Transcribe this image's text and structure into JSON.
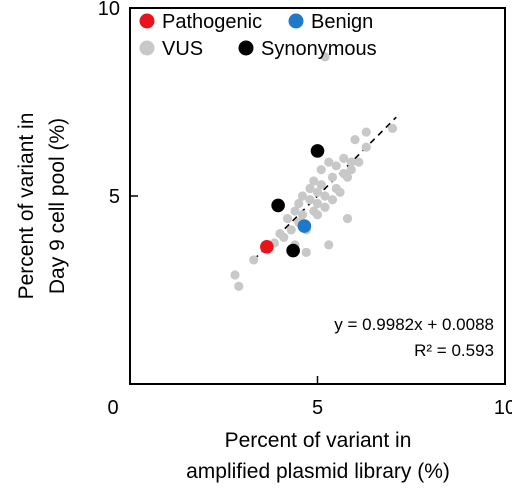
{
  "chart_data": {
    "type": "scatter",
    "xlabel_lines": [
      "Percent of variant in",
      "amplified plasmid library (%)"
    ],
    "ylabel_lines": [
      "Percent of variant in",
      "Day 9 cell pool (%)"
    ],
    "xlim": [
      0,
      10
    ],
    "ylim": [
      0,
      10
    ],
    "xticks": [
      5,
      10
    ],
    "yticks": [
      5,
      10
    ],
    "origin_label": "0",
    "grid": false,
    "legend_position": "top-left",
    "series": [
      {
        "name": "Pathogenic",
        "color": "#e8141c",
        "points": [
          [
            3.65,
            3.65
          ]
        ]
      },
      {
        "name": "Benign",
        "color": "#1f78c8",
        "points": [
          [
            4.65,
            4.2
          ]
        ]
      },
      {
        "name": "VUS",
        "color": "#c8c8c8",
        "points": [
          [
            2.8,
            2.9
          ],
          [
            2.9,
            2.6
          ],
          [
            3.3,
            3.3
          ],
          [
            3.6,
            3.6
          ],
          [
            3.85,
            3.75
          ],
          [
            4.0,
            4.0
          ],
          [
            4.1,
            3.9
          ],
          [
            4.2,
            4.4
          ],
          [
            4.3,
            4.1
          ],
          [
            4.4,
            4.6
          ],
          [
            4.4,
            3.7
          ],
          [
            4.5,
            4.3
          ],
          [
            4.5,
            4.8
          ],
          [
            4.6,
            4.5
          ],
          [
            4.6,
            5.0
          ],
          [
            4.7,
            4.1
          ],
          [
            4.7,
            3.5
          ],
          [
            4.8,
            4.9
          ],
          [
            4.8,
            5.2
          ],
          [
            4.9,
            4.6
          ],
          [
            4.9,
            5.4
          ],
          [
            5.0,
            4.8
          ],
          [
            5.0,
            5.1
          ],
          [
            5.0,
            4.5
          ],
          [
            5.1,
            5.3
          ],
          [
            5.1,
            5.7
          ],
          [
            5.2,
            4.7
          ],
          [
            5.2,
            5.0
          ],
          [
            5.3,
            5.9
          ],
          [
            5.3,
            3.7
          ],
          [
            5.4,
            5.5
          ],
          [
            5.4,
            4.9
          ],
          [
            5.5,
            5.8
          ],
          [
            5.5,
            5.2
          ],
          [
            5.6,
            5.1
          ],
          [
            5.7,
            5.6
          ],
          [
            5.7,
            6.0
          ],
          [
            5.8,
            5.5
          ],
          [
            5.8,
            4.4
          ],
          [
            5.9,
            5.9
          ],
          [
            5.9,
            5.7
          ],
          [
            6.0,
            6.5
          ],
          [
            6.1,
            5.9
          ],
          [
            6.3,
            6.7
          ],
          [
            6.3,
            6.3
          ],
          [
            5.2,
            8.7
          ],
          [
            7.0,
            6.8
          ]
        ]
      },
      {
        "name": "Synonymous",
        "color": "#000000",
        "points": [
          [
            3.95,
            4.75
          ],
          [
            4.35,
            3.55
          ],
          [
            5.0,
            6.2
          ]
        ]
      }
    ],
    "fit_line": {
      "x_range": [
        3.3,
        7.1
      ],
      "slope": 0.9982,
      "intercept": 0.0088,
      "style": "dashed"
    },
    "annotations": [
      "y = 0.9982x + 0.0088",
      "R² = 0.593"
    ]
  }
}
